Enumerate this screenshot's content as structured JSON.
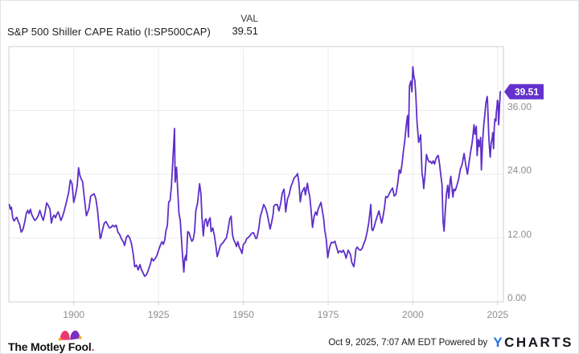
{
  "header": {
    "title": "S&P 500 Shiller CAPE Ratio (I:SP500CAP)",
    "val_label": "VAL",
    "val_value": "39.51"
  },
  "badge": {
    "label": "39.51",
    "background_color": "#6431ce",
    "text_color": "#ffffff"
  },
  "footer": {
    "brand": "The Motley Fool",
    "brand_period": ".",
    "jester_hat_colors": {
      "left_lobe": "#ec3a6e",
      "right_lobe": "#7b2fc0",
      "balls": "#f7a51f"
    },
    "timestamp": "Oct 9, 2025, 7:07 AM EDT",
    "powered_by": "Powered by",
    "ycharts_y": "Y",
    "ycharts_rest": "CHARTS",
    "ycharts_y_color": "#2273e3"
  },
  "chart_data": {
    "type": "line",
    "title": "S&P 500 Shiller CAPE Ratio (I:SP500CAP)",
    "series_name": "S&P 500 Shiller CAPE Ratio",
    "last_value": 39.51,
    "line_color": "#5e2fc9",
    "grid_color": "#ebebeb",
    "border_color": "#cfcfcf",
    "grid": true,
    "legend_position": "none",
    "xlim": [
      1880.85,
      2026.7
    ],
    "ylim": [
      0,
      48
    ],
    "x_ticks": [
      1900,
      1925,
      1950,
      1975,
      2000,
      2025
    ],
    "y_ticks": [
      {
        "v": 36,
        "label": "36.00"
      },
      {
        "v": 24,
        "label": "24.00"
      },
      {
        "v": 12,
        "label": "12.00"
      },
      {
        "v": 0,
        "label": "0.00"
      }
    ],
    "points": [
      [
        1881,
        18.3
      ],
      [
        1881.3,
        17.4
      ],
      [
        1881.6,
        17.8
      ],
      [
        1882,
        15.8
      ],
      [
        1882.4,
        15.2
      ],
      [
        1882.8,
        15.6
      ],
      [
        1883.2,
        15.9
      ],
      [
        1883.6,
        15.1
      ],
      [
        1884,
        14.6
      ],
      [
        1884.5,
        13.1
      ],
      [
        1885,
        13.6
      ],
      [
        1885.5,
        14.9
      ],
      [
        1886,
        16.6
      ],
      [
        1886.4,
        17.2
      ],
      [
        1886.8,
        16.6
      ],
      [
        1887.2,
        17.4
      ],
      [
        1887.6,
        16.4
      ],
      [
        1888,
        15.9
      ],
      [
        1888.5,
        15.3
      ],
      [
        1889,
        15.6
      ],
      [
        1889.5,
        16.2
      ],
      [
        1890,
        17.2
      ],
      [
        1890.5,
        16.1
      ],
      [
        1891,
        15.3
      ],
      [
        1891.5,
        16.7
      ],
      [
        1892,
        18.6
      ],
      [
        1892.5,
        18.1
      ],
      [
        1893,
        17.4
      ],
      [
        1893.4,
        14.8
      ],
      [
        1893.8,
        15.9
      ],
      [
        1894.2,
        16.3
      ],
      [
        1894.6,
        15.8
      ],
      [
        1895,
        16.5
      ],
      [
        1895.4,
        16.9
      ],
      [
        1895.8,
        16.2
      ],
      [
        1896.2,
        15.3
      ],
      [
        1896.6,
        15.9
      ],
      [
        1897,
        16.7
      ],
      [
        1897.5,
        17.9
      ],
      [
        1898,
        19.2
      ],
      [
        1898.5,
        20.6
      ],
      [
        1899,
        22.9
      ],
      [
        1899.5,
        22.2
      ],
      [
        1900,
        18.7
      ],
      [
        1900.5,
        20.1
      ],
      [
        1901,
        21.8
      ],
      [
        1901.4,
        25.2
      ],
      [
        1901.8,
        23.8
      ],
      [
        1902.2,
        23.1
      ],
      [
        1902.6,
        22.6
      ],
      [
        1903,
        20.2
      ],
      [
        1903.7,
        16.2
      ],
      [
        1904,
        16.6
      ],
      [
        1904.5,
        17.6
      ],
      [
        1905,
        19.9
      ],
      [
        1905.5,
        20.1
      ],
      [
        1906,
        20.3
      ],
      [
        1906.5,
        19.4
      ],
      [
        1907,
        17.2
      ],
      [
        1907.8,
        11.9
      ],
      [
        1908,
        12.1
      ],
      [
        1908.5,
        13.6
      ],
      [
        1909,
        14.8
      ],
      [
        1909.5,
        15.1
      ],
      [
        1910,
        14.5
      ],
      [
        1910.5,
        13.9
      ],
      [
        1911,
        14
      ],
      [
        1911.5,
        14.4
      ],
      [
        1912,
        14.1
      ],
      [
        1912.5,
        14.4
      ],
      [
        1913,
        13.1
      ],
      [
        1913.5,
        12.7
      ],
      [
        1914,
        11.9
      ],
      [
        1914.6,
        11.3
      ],
      [
        1915,
        10.6
      ],
      [
        1915.5,
        12.1
      ],
      [
        1916,
        12.5
      ],
      [
        1916.5,
        12
      ],
      [
        1917,
        11
      ],
      [
        1917.5,
        9.2
      ],
      [
        1918,
        6.6
      ],
      [
        1918.5,
        6.9
      ],
      [
        1919,
        6
      ],
      [
        1919.5,
        7
      ],
      [
        1920,
        6
      ],
      [
        1920.9,
        4.8
      ],
      [
        1921.3,
        5
      ],
      [
        1921.8,
        5.6
      ],
      [
        1922.2,
        6.4
      ],
      [
        1922.6,
        7.1
      ],
      [
        1923,
        8.2
      ],
      [
        1923.5,
        7.7
      ],
      [
        1924,
        8.1
      ],
      [
        1924.5,
        8.7
      ],
      [
        1925,
        9.7
      ],
      [
        1925.5,
        10.6
      ],
      [
        1926,
        11.3
      ],
      [
        1926.4,
        10.8
      ],
      [
        1926.8,
        11.6
      ],
      [
        1927.2,
        13.4
      ],
      [
        1927.6,
        14.3
      ],
      [
        1928,
        18.8
      ],
      [
        1928.4,
        19
      ],
      [
        1928.8,
        21.8
      ],
      [
        1929.2,
        26.5
      ],
      [
        1929.7,
        32.6
      ],
      [
        1929.9,
        22.5
      ],
      [
        1930.3,
        25.3
      ],
      [
        1930.6,
        21.5
      ],
      [
        1931,
        16.7
      ],
      [
        1931.4,
        15.2
      ],
      [
        1931.8,
        11.5
      ],
      [
        1932,
        9.3
      ],
      [
        1932.45,
        5.6
      ],
      [
        1932.7,
        8
      ],
      [
        1933,
        8.7
      ],
      [
        1933.2,
        7.8
      ],
      [
        1933.6,
        13.2
      ],
      [
        1934,
        13
      ],
      [
        1934.4,
        12.1
      ],
      [
        1934.8,
        11.4
      ],
      [
        1935.2,
        11.7
      ],
      [
        1935.6,
        13.2
      ],
      [
        1936,
        17.1
      ],
      [
        1936.5,
        18.6
      ],
      [
        1937.1,
        22.2
      ],
      [
        1937.5,
        20.3
      ],
      [
        1937.8,
        16
      ],
      [
        1938.2,
        12.4
      ],
      [
        1938.6,
        15.2
      ],
      [
        1939,
        15.6
      ],
      [
        1939.4,
        14.2
      ],
      [
        1939.8,
        15.3
      ],
      [
        1940.2,
        15.8
      ],
      [
        1940.5,
        13.2
      ],
      [
        1941,
        13.9
      ],
      [
        1941.5,
        12.4
      ],
      [
        1942,
        10.1
      ],
      [
        1942.3,
        8.5
      ],
      [
        1942.8,
        9.6
      ],
      [
        1943.2,
        10.5
      ],
      [
        1943.6,
        10.9
      ],
      [
        1944,
        11.1
      ],
      [
        1944.5,
        11.6
      ],
      [
        1945,
        12
      ],
      [
        1945.5,
        13.6
      ],
      [
        1946,
        15.6
      ],
      [
        1946.4,
        16.1
      ],
      [
        1946.8,
        12.6
      ],
      [
        1947.2,
        11.6
      ],
      [
        1947.6,
        11.1
      ],
      [
        1948,
        10.4
      ],
      [
        1948.4,
        11.3
      ],
      [
        1948.8,
        10.3
      ],
      [
        1949.2,
        9.8
      ],
      [
        1949.6,
        9.1
      ],
      [
        1950,
        10.8
      ],
      [
        1950.5,
        11.1
      ],
      [
        1951,
        11.9
      ],
      [
        1951.5,
        12.1
      ],
      [
        1952,
        12.5
      ],
      [
        1952.5,
        12.9
      ],
      [
        1953,
        13
      ],
      [
        1953.7,
        11.9
      ],
      [
        1954,
        12
      ],
      [
        1954.5,
        13.6
      ],
      [
        1955,
        16
      ],
      [
        1955.5,
        17.1
      ],
      [
        1956,
        18.3
      ],
      [
        1956.5,
        17.7
      ],
      [
        1957,
        16.7
      ],
      [
        1957.9,
        13.7
      ],
      [
        1958.3,
        14.8
      ],
      [
        1958.8,
        16.5
      ],
      [
        1959,
        18
      ],
      [
        1959.5,
        18.3
      ],
      [
        1960,
        18.3
      ],
      [
        1960.5,
        17.1
      ],
      [
        1961,
        18.5
      ],
      [
        1961.5,
        20.5
      ],
      [
        1962,
        21.2
      ],
      [
        1962.5,
        16.9
      ],
      [
        1963,
        19.3
      ],
      [
        1963.5,
        20.1
      ],
      [
        1964,
        21.6
      ],
      [
        1964.5,
        22.4
      ],
      [
        1965,
        23.3
      ],
      [
        1965.5,
        23.6
      ],
      [
        1966,
        24.1
      ],
      [
        1966.4,
        22.4
      ],
      [
        1966.8,
        18.8
      ],
      [
        1967.2,
        20.5
      ],
      [
        1967.6,
        21
      ],
      [
        1968,
        21.5
      ],
      [
        1968.3,
        20.1
      ],
      [
        1968.9,
        22.3
      ],
      [
        1969.2,
        21
      ],
      [
        1969.6,
        19.8
      ],
      [
        1970,
        17.1
      ],
      [
        1970.4,
        14
      ],
      [
        1970.9,
        16.1
      ],
      [
        1971.3,
        16.9
      ],
      [
        1971.7,
        16.3
      ],
      [
        1972,
        17.3
      ],
      [
        1972.9,
        18.7
      ],
      [
        1973.3,
        17.2
      ],
      [
        1973.7,
        15.6
      ],
      [
        1974,
        13.5
      ],
      [
        1974.4,
        12
      ],
      [
        1974.9,
        8.3
      ],
      [
        1975.2,
        9.4
      ],
      [
        1975.6,
        10.6
      ],
      [
        1976,
        11.2
      ],
      [
        1976.5,
        11.1
      ],
      [
        1977,
        11.4
      ],
      [
        1977.5,
        10.3
      ],
      [
        1978,
        9.2
      ],
      [
        1978.5,
        9.6
      ],
      [
        1979,
        9.3
      ],
      [
        1979.5,
        9.7
      ],
      [
        1980,
        8.9
      ],
      [
        1980.3,
        8.2
      ],
      [
        1980.9,
        9.7
      ],
      [
        1981.2,
        9.4
      ],
      [
        1981.6,
        8.9
      ],
      [
        1982,
        7.4
      ],
      [
        1982.6,
        6.6
      ],
      [
        1982.9,
        8
      ],
      [
        1983.2,
        9.9
      ],
      [
        1983.6,
        10.3
      ],
      [
        1984,
        9.9
      ],
      [
        1984.5,
        9.7
      ],
      [
        1985,
        10
      ],
      [
        1985.5,
        10.9
      ],
      [
        1986,
        11.7
      ],
      [
        1986.5,
        13.1
      ],
      [
        1987,
        14.9
      ],
      [
        1987.6,
        18.3
      ],
      [
        1987.9,
        13.6
      ],
      [
        1988.2,
        13.4
      ],
      [
        1988.6,
        14.1
      ],
      [
        1989,
        15.1
      ],
      [
        1989.5,
        16.1
      ],
      [
        1990,
        17.1
      ],
      [
        1990.8,
        14.8
      ],
      [
        1991.2,
        16
      ],
      [
        1991.6,
        17.6
      ],
      [
        1992,
        19.8
      ],
      [
        1992.5,
        19.6
      ],
      [
        1993,
        20.3
      ],
      [
        1993.5,
        20.9
      ],
      [
        1994,
        21.4
      ],
      [
        1994.5,
        19.9
      ],
      [
        1995,
        20.2
      ],
      [
        1995.5,
        22.1
      ],
      [
        1996,
        24.8
      ],
      [
        1996.4,
        24.2
      ],
      [
        1996.8,
        25.9
      ],
      [
        1997.2,
        28.3
      ],
      [
        1997.6,
        30.2
      ],
      [
        1998,
        32.9
      ],
      [
        1998.4,
        35
      ],
      [
        1998.7,
        31
      ],
      [
        1999,
        40.6
      ],
      [
        1999.4,
        41.5
      ],
      [
        1999.7,
        39.5
      ],
      [
        2000,
        44.2
      ],
      [
        2000.3,
        42.3
      ],
      [
        2000.6,
        41.6
      ],
      [
        2000.9,
        38.5
      ],
      [
        2001.2,
        34
      ],
      [
        2001.7,
        30
      ],
      [
        2002,
        30.6
      ],
      [
        2002.3,
        31.4
      ],
      [
        2002.7,
        24.2
      ],
      [
        2003,
        22.9
      ],
      [
        2003.2,
        21.3
      ],
      [
        2003.6,
        24
      ],
      [
        2004,
        27.7
      ],
      [
        2004.4,
        26.8
      ],
      [
        2004.8,
        26.3
      ],
      [
        2005.2,
        26.4
      ],
      [
        2005.6,
        26
      ],
      [
        2006,
        26.5
      ],
      [
        2006.4,
        25.9
      ],
      [
        2006.8,
        26.9
      ],
      [
        2007.2,
        27.4
      ],
      [
        2007.5,
        27.5
      ],
      [
        2007.9,
        25.8
      ],
      [
        2008.2,
        24
      ],
      [
        2008.6,
        22
      ],
      [
        2008.9,
        15.2
      ],
      [
        2009.2,
        13.3
      ],
      [
        2009.6,
        17.5
      ],
      [
        2009.9,
        20.3
      ],
      [
        2010.3,
        21.9
      ],
      [
        2010.6,
        19.5
      ],
      [
        2011,
        22.9
      ],
      [
        2011.2,
        23.6
      ],
      [
        2011.8,
        19.7
      ],
      [
        2012.1,
        21.2
      ],
      [
        2012.5,
        20.9
      ],
      [
        2013,
        21.9
      ],
      [
        2013.5,
        23.1
      ],
      [
        2014,
        24.9
      ],
      [
        2014.5,
        25.8
      ],
      [
        2015.1,
        27.9
      ],
      [
        2015.6,
        25.7
      ],
      [
        2016.1,
        24
      ],
      [
        2016.5,
        25.9
      ],
      [
        2017,
        28.1
      ],
      [
        2017.5,
        30
      ],
      [
        2018.05,
        33.3
      ],
      [
        2018.3,
        31.5
      ],
      [
        2018.7,
        33
      ],
      [
        2018.95,
        27.5
      ],
      [
        2019.3,
        30.5
      ],
      [
        2019.6,
        29.2
      ],
      [
        2020,
        30.9
      ],
      [
        2020.2,
        24.8
      ],
      [
        2020.6,
        30.5
      ],
      [
        2020.9,
        33.1
      ],
      [
        2021.2,
        35
      ],
      [
        2021.5,
        37.2
      ],
      [
        2021.9,
        38.6
      ],
      [
        2022,
        37.9
      ],
      [
        2022.4,
        30.8
      ],
      [
        2022.6,
        28.9
      ],
      [
        2022.8,
        27.2
      ],
      [
        2023.1,
        29.9
      ],
      [
        2023.4,
        30.8
      ],
      [
        2023.55,
        31.8
      ],
      [
        2023.8,
        28.8
      ],
      [
        2024,
        32.7
      ],
      [
        2024.2,
        34.4
      ],
      [
        2024.5,
        34
      ],
      [
        2024.6,
        35.5
      ],
      [
        2024.75,
        36.4
      ],
      [
        2024.95,
        37.9
      ],
      [
        2025.1,
        37.5
      ],
      [
        2025.3,
        33.3
      ],
      [
        2025.5,
        36
      ],
      [
        2025.65,
        38
      ],
      [
        2025.78,
        39.51
      ]
    ]
  }
}
